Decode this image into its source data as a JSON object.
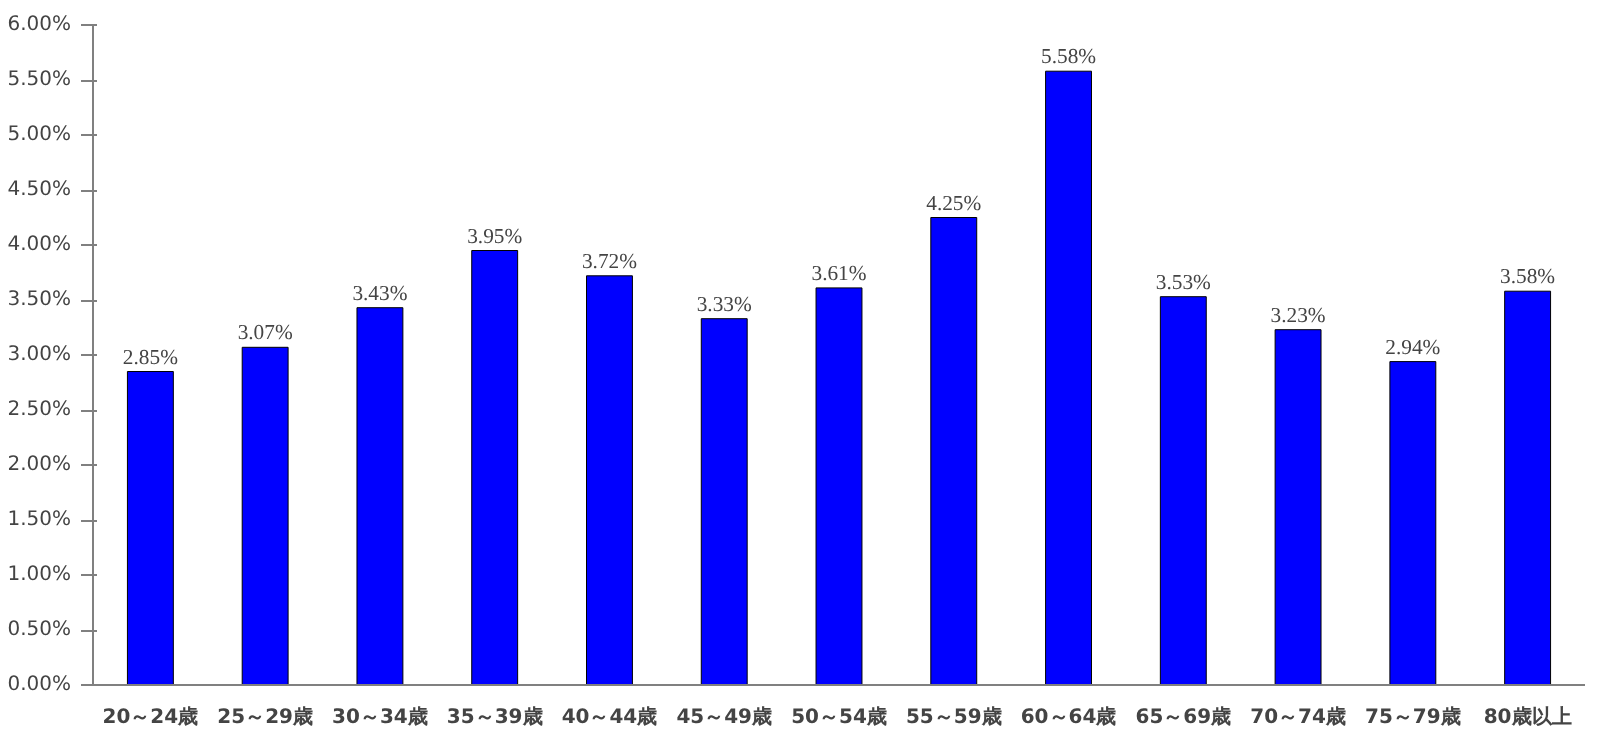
{
  "chart_data": {
    "type": "bar",
    "categories": [
      "20～24歳",
      "25～29歳",
      "30～34歳",
      "35～39歳",
      "40～44歳",
      "45～49歳",
      "50～54歳",
      "55～59歳",
      "60～64歳",
      "65～69歳",
      "70～74歳",
      "75～79歳",
      "80歳以上"
    ],
    "values": [
      2.85,
      3.07,
      3.43,
      3.95,
      3.72,
      3.33,
      3.61,
      4.25,
      5.58,
      3.53,
      3.23,
      2.94,
      3.58
    ],
    "value_labels": [
      "2.85%",
      "3.07%",
      "3.43%",
      "3.95%",
      "3.72%",
      "3.33%",
      "3.61%",
      "4.25%",
      "5.58%",
      "3.53%",
      "3.23%",
      "2.94%",
      "3.58%"
    ],
    "color": "#0000ff",
    "ylim": [
      0,
      6
    ],
    "yticks": [
      {
        "value": 0,
        "label": "0.00%"
      },
      {
        "value": 0.5,
        "label": "0.50%"
      },
      {
        "value": 1,
        "label": "1.00%"
      },
      {
        "value": 1.5,
        "label": "1.50%"
      },
      {
        "value": 2,
        "label": "2.00%"
      },
      {
        "value": 2.5,
        "label": "2.50%"
      },
      {
        "value": 3,
        "label": "3.00%"
      },
      {
        "value": 3.5,
        "label": "3.50%"
      },
      {
        "value": 4,
        "label": "4.00%"
      },
      {
        "value": 4.5,
        "label": "4.50%"
      },
      {
        "value": 5,
        "label": "5.00%"
      },
      {
        "value": 5.5,
        "label": "5.50%"
      },
      {
        "value": 6,
        "label": "6.00%"
      }
    ],
    "grid": false
  }
}
